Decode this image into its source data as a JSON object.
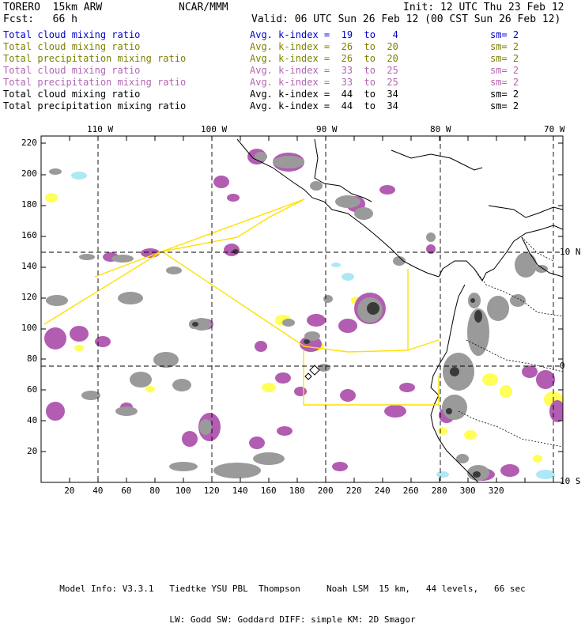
{
  "header": {
    "title": "TORERO  15km ARW",
    "org": "NCAR/MMM",
    "init": "Init: 12 UTC Thu 23 Feb 12",
    "fcst": "Fcst:   66 h",
    "valid": "Valid: 06 UTC Sun 26 Feb 12 (00 CST Sun 26 Feb 12)"
  },
  "legend": [
    {
      "field": "Total cloud mixing ratio",
      "stat": "Avg. k-index =  19  to   4",
      "sm": "sm= 2",
      "color": "#0000cc"
    },
    {
      "field": "Total cloud mixing ratio",
      "stat": "Avg. k-index =  26  to  20",
      "sm": "sm= 2",
      "color": "#808000"
    },
    {
      "field": "Total precipitation mixing ratio",
      "stat": "Avg. k-index =  26  to  20",
      "sm": "sm= 2",
      "color": "#808000"
    },
    {
      "field": "Total cloud mixing ratio",
      "stat": "Avg. k-index =  33  to  25",
      "sm": "sm= 2",
      "color": "#b266b2"
    },
    {
      "field": "Total precipitation mixing ratio",
      "stat": "Avg. k-index =  33  to  25",
      "sm": "sm= 2",
      "color": "#b266b2"
    },
    {
      "field": "Total cloud mixing ratio",
      "stat": "Avg. k-index =  44  to  34",
      "sm": "sm= 2",
      "color": "#000000"
    },
    {
      "field": "Total precipitation mixing ratio",
      "stat": "Avg. k-index =  44  to  34",
      "sm": "sm= 2",
      "color": "#000000"
    }
  ],
  "map": {
    "lon_labels": [
      "110 W",
      "100 W",
      "90 W",
      "80 W",
      "70 W"
    ],
    "lat_labels": [
      "10 N",
      "0",
      "10 S"
    ],
    "x_ticks": [
      "20",
      "40",
      "60",
      "80",
      "100",
      "120",
      "140",
      "160",
      "180",
      "200",
      "220",
      "240",
      "260",
      "280",
      "300",
      "320"
    ],
    "y_ticks": [
      "220",
      "200",
      "180",
      "160",
      "140",
      "120",
      "100",
      "80",
      "60",
      "40",
      "20"
    ],
    "colors": {
      "cloud_gray": "#9a9a9a",
      "cloud_dark": "#3a3a3a",
      "precip_purple": "#b25cb2",
      "precip_yellow": "#ffff55",
      "flight_track": "#ffe000",
      "light_blue": "#aee8f5",
      "coast": "#000000",
      "grid": "#000000"
    }
  },
  "footer": {
    "line1": "Model Info: V3.3.1   Tiedtke YSU PBL  Thompson     Noah LSM  15 km,   44 levels,   66 sec",
    "line2": "LW: Godd SW: Goddard DIFF: simple KM: 2D Smagor"
  }
}
